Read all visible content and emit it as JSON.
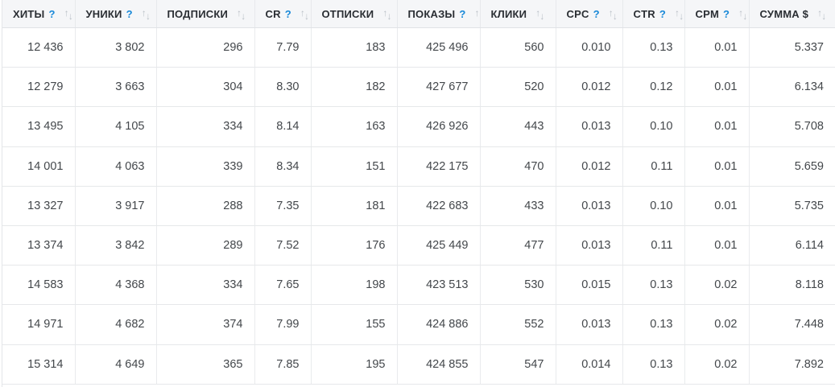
{
  "table": {
    "columns": [
      {
        "key": "hits",
        "label": "ХИТЫ",
        "help": true
      },
      {
        "key": "uniques",
        "label": "УНИКИ",
        "help": true
      },
      {
        "key": "subscriptions",
        "label": "ПОДПИСКИ",
        "help": false
      },
      {
        "key": "cr",
        "label": "CR",
        "help": true
      },
      {
        "key": "unsubscribes",
        "label": "ОТПИСКИ",
        "help": false
      },
      {
        "key": "impressions",
        "label": "ПОКАЗЫ",
        "help": true
      },
      {
        "key": "clicks",
        "label": "КЛИКИ",
        "help": false
      },
      {
        "key": "cpc",
        "label": "CPC",
        "help": true
      },
      {
        "key": "ctr",
        "label": "CTR",
        "help": true
      },
      {
        "key": "cpm",
        "label": "CPM",
        "help": true
      },
      {
        "key": "sum",
        "label": "СУММА $",
        "help": false
      }
    ],
    "rows": [
      [
        "12 436",
        "3 802",
        "296",
        "7.79",
        "183",
        "425 496",
        "560",
        "0.010",
        "0.13",
        "0.01",
        "5.337"
      ],
      [
        "12 279",
        "3 663",
        "304",
        "8.30",
        "182",
        "427 677",
        "520",
        "0.012",
        "0.12",
        "0.01",
        "6.134"
      ],
      [
        "13 495",
        "4 105",
        "334",
        "8.14",
        "163",
        "426 926",
        "443",
        "0.013",
        "0.10",
        "0.01",
        "5.708"
      ],
      [
        "14 001",
        "4 063",
        "339",
        "8.34",
        "151",
        "422 175",
        "470",
        "0.012",
        "0.11",
        "0.01",
        "5.659"
      ],
      [
        "13 327",
        "3 917",
        "288",
        "7.35",
        "181",
        "422 683",
        "433",
        "0.013",
        "0.10",
        "0.01",
        "5.735"
      ],
      [
        "13 374",
        "3 842",
        "289",
        "7.52",
        "176",
        "425 449",
        "477",
        "0.013",
        "0.11",
        "0.01",
        "6.114"
      ],
      [
        "14 583",
        "4 368",
        "334",
        "7.65",
        "198",
        "423 513",
        "530",
        "0.015",
        "0.13",
        "0.02",
        "8.118"
      ],
      [
        "14 971",
        "4 682",
        "374",
        "7.99",
        "155",
        "424 886",
        "552",
        "0.013",
        "0.13",
        "0.02",
        "7.448"
      ],
      [
        "15 314",
        "4 649",
        "365",
        "7.85",
        "195",
        "424 855",
        "547",
        "0.014",
        "0.13",
        "0.02",
        "7.892"
      ]
    ]
  },
  "icons": {
    "help": "?",
    "sort_up": "↑",
    "sort_down": "↓"
  },
  "colors": {
    "accent_blue": "#1989d8",
    "header_bg": "#f5f6f8",
    "border": "#e6e8ea",
    "header_text": "#2a2e33",
    "cell_text": "#43474b",
    "sort_icon": "#b9bfc6"
  }
}
